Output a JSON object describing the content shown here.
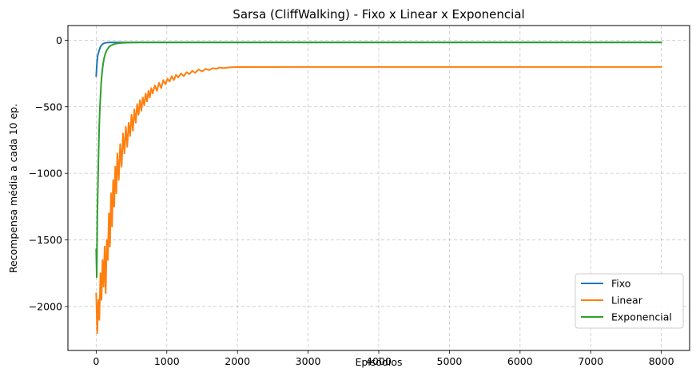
{
  "chart_data": {
    "type": "line",
    "title": "Sarsa (CliffWalking) - Fixo x Linear x Exponencial",
    "xlabel": "Episódios",
    "ylabel": "Recompensa média a cada 10 ep.",
    "xlim": [
      -400,
      8400
    ],
    "ylim": [
      -2330,
      110
    ],
    "x_ticks": [
      0,
      1000,
      2000,
      3000,
      4000,
      5000,
      6000,
      7000,
      8000
    ],
    "y_ticks": [
      0,
      -500,
      -1000,
      -1500,
      -2000
    ],
    "x_tick_labels": [
      "0",
      "1000",
      "2000",
      "3000",
      "4000",
      "5000",
      "6000",
      "7000",
      "8000"
    ],
    "y_tick_labels": [
      "0",
      "−500",
      "−1000",
      "−1500",
      "−2000"
    ],
    "grid": true,
    "legend_position": "bottom-right",
    "series": [
      {
        "name": "Fixo",
        "color": "#1f77b4",
        "points": [
          [
            0,
            -270
          ],
          [
            10,
            -180
          ],
          [
            20,
            -120
          ],
          [
            40,
            -80
          ],
          [
            60,
            -50
          ],
          [
            80,
            -35
          ],
          [
            100,
            -25
          ],
          [
            130,
            -20
          ],
          [
            160,
            -18
          ],
          [
            200,
            -17
          ],
          [
            300,
            -17
          ],
          [
            1000,
            -17
          ],
          [
            2000,
            -17
          ],
          [
            3000,
            -17
          ],
          [
            4000,
            -17
          ],
          [
            5000,
            -17
          ],
          [
            6000,
            -17
          ],
          [
            7000,
            -17
          ],
          [
            8000,
            -17
          ]
        ]
      },
      {
        "name": "Linear",
        "color": "#ff7f0e",
        "points": [
          [
            0,
            -1900
          ],
          [
            15,
            -2200
          ],
          [
            30,
            -1950
          ],
          [
            45,
            -2100
          ],
          [
            60,
            -1750
          ],
          [
            75,
            -1950
          ],
          [
            90,
            -1650
          ],
          [
            105,
            -1850
          ],
          [
            120,
            -1550
          ],
          [
            135,
            -1900
          ],
          [
            150,
            -1500
          ],
          [
            165,
            -1650
          ],
          [
            180,
            -1300
          ],
          [
            195,
            -1550
          ],
          [
            210,
            -1150
          ],
          [
            225,
            -1400
          ],
          [
            240,
            -1050
          ],
          [
            255,
            -1250
          ],
          [
            270,
            -950
          ],
          [
            285,
            -1150
          ],
          [
            300,
            -850
          ],
          [
            320,
            -1050
          ],
          [
            340,
            -780
          ],
          [
            360,
            -950
          ],
          [
            380,
            -700
          ],
          [
            400,
            -850
          ],
          [
            420,
            -650
          ],
          [
            440,
            -800
          ],
          [
            460,
            -620
          ],
          [
            480,
            -720
          ],
          [
            500,
            -560
          ],
          [
            520,
            -680
          ],
          [
            540,
            -520
          ],
          [
            560,
            -620
          ],
          [
            580,
            -480
          ],
          [
            600,
            -560
          ],
          [
            620,
            -450
          ],
          [
            640,
            -530
          ],
          [
            660,
            -430
          ],
          [
            680,
            -490
          ],
          [
            700,
            -400
          ],
          [
            720,
            -460
          ],
          [
            740,
            -380
          ],
          [
            760,
            -430
          ],
          [
            780,
            -360
          ],
          [
            800,
            -400
          ],
          [
            830,
            -340
          ],
          [
            860,
            -380
          ],
          [
            890,
            -320
          ],
          [
            920,
            -360
          ],
          [
            950,
            -300
          ],
          [
            980,
            -330
          ],
          [
            1010,
            -290
          ],
          [
            1040,
            -310
          ],
          [
            1070,
            -270
          ],
          [
            1100,
            -300
          ],
          [
            1130,
            -260
          ],
          [
            1160,
            -280
          ],
          [
            1200,
            -250
          ],
          [
            1240,
            -270
          ],
          [
            1280,
            -240
          ],
          [
            1320,
            -255
          ],
          [
            1360,
            -230
          ],
          [
            1400,
            -245
          ],
          [
            1450,
            -220
          ],
          [
            1500,
            -235
          ],
          [
            1550,
            -215
          ],
          [
            1600,
            -225
          ],
          [
            1650,
            -210
          ],
          [
            1700,
            -215
          ],
          [
            1750,
            -205
          ],
          [
            1800,
            -210
          ],
          [
            1900,
            -203
          ],
          [
            2000,
            -202
          ],
          [
            3000,
            -201
          ],
          [
            4000,
            -201
          ],
          [
            5000,
            -201
          ],
          [
            6000,
            -201
          ],
          [
            7000,
            -201
          ],
          [
            8000,
            -201
          ]
        ]
      },
      {
        "name": "Exponencial",
        "color": "#2ca02c",
        "points": [
          [
            0,
            -1570
          ],
          [
            8,
            -1780
          ],
          [
            16,
            -1320
          ],
          [
            24,
            -1100
          ],
          [
            32,
            -900
          ],
          [
            40,
            -700
          ],
          [
            50,
            -540
          ],
          [
            60,
            -430
          ],
          [
            70,
            -330
          ],
          [
            80,
            -260
          ],
          [
            95,
            -190
          ],
          [
            110,
            -140
          ],
          [
            130,
            -100
          ],
          [
            150,
            -75
          ],
          [
            175,
            -55
          ],
          [
            200,
            -42
          ],
          [
            240,
            -32
          ],
          [
            280,
            -26
          ],
          [
            320,
            -22
          ],
          [
            380,
            -20
          ],
          [
            450,
            -18
          ],
          [
            600,
            -17
          ],
          [
            1000,
            -17
          ],
          [
            2000,
            -17
          ],
          [
            3000,
            -17
          ],
          [
            4000,
            -17
          ],
          [
            5000,
            -17
          ],
          [
            6000,
            -17
          ],
          [
            7000,
            -17
          ],
          [
            8000,
            -17
          ]
        ]
      }
    ]
  }
}
